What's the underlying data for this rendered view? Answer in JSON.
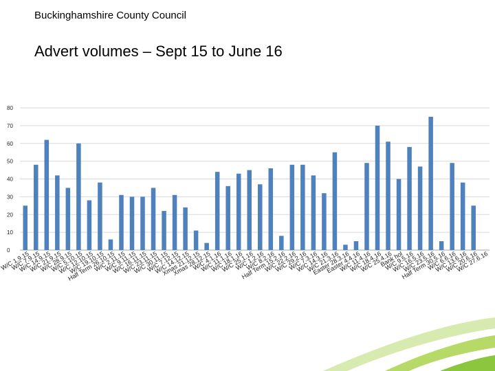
{
  "header": {
    "organisation": "Buckinghamshire County Council",
    "title": "Advert volumes – Sept 15 to June 16"
  },
  "colors": {
    "bar": "#4F81BD",
    "grid": "#d9d9d9",
    "swoosh_light": "#d7ebb0",
    "swoosh_mid": "#b6d968",
    "swoosh_dark": "#8cc63f"
  },
  "chart_data": {
    "type": "bar",
    "title": "",
    "xlabel": "",
    "ylabel": "",
    "ylim": [
      0,
      80
    ],
    "yticks": [
      0,
      10,
      20,
      30,
      40,
      50,
      60,
      70,
      80
    ],
    "grid": true,
    "legend": "none",
    "categories": [
      "W/C 1.9.15",
      "W/C 7.9.15",
      "W/C 14.9.15",
      "W/C 21.9.15",
      "W/C 28.9.15",
      "W/C 5.10.15",
      "W/C 12.10.15",
      "W/C 19.10.15",
      "Half Term 26.10.15",
      "W/C 2.11.15",
      "W/C 9.11.15",
      "W/C 16.11.15",
      "W/C 23.11.15",
      "W/C 30.11.15",
      "W/C 7.12.15",
      "W/C 14.12.15",
      "Xmas 21.12.15",
      "Xmas 28.12.15",
      "W/C 4.1.16",
      "W/C 11.1.16",
      "W/C 18.1.16",
      "W/C 25.1.16",
      "W/C 1.2.16",
      "W/C 8.2.16",
      "Half Term 15.2.16",
      "W/C 22.2.16",
      "W/C 29.2.16",
      "W/C 7.3.16",
      "W/C 14.3.16",
      "W/C 21.3.16",
      "Easter 28.3.16",
      "Easter 4.4.16",
      "W/C 11.4.16",
      "W/C 18.4.16",
      "W/C 25.4.16",
      "Bank hol",
      "W/C 9.5.16",
      "W/C 16.5.16",
      "W/C 23.5.16",
      "Half Term 30.5.16",
      "W/C 6.6.16",
      "W/C 13.6.16",
      "W/C 20.6.16",
      "W/C 27.6.16"
    ],
    "values": [
      25,
      48,
      62,
      42,
      35,
      60,
      28,
      38,
      6,
      31,
      30,
      30,
      35,
      22,
      31,
      24,
      11,
      4,
      44,
      36,
      43,
      45,
      37,
      46,
      8,
      48,
      48,
      42,
      32,
      55,
      3,
      5,
      49,
      70,
      61,
      40,
      58,
      47,
      75,
      5,
      49,
      38,
      25,
      0
    ]
  }
}
